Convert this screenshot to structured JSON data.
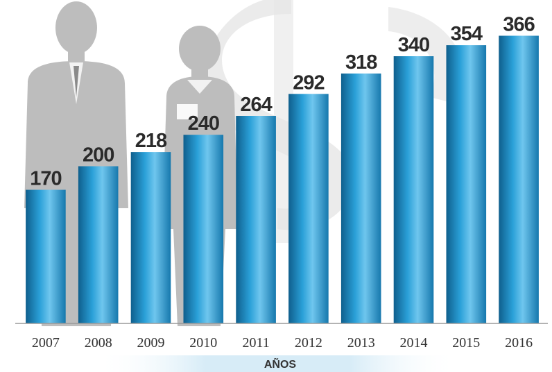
{
  "chart_data": {
    "type": "bar",
    "categories": [
      "2007",
      "2008",
      "2009",
      "2010",
      "2011",
      "2012",
      "2013",
      "2014",
      "2015",
      "2016"
    ],
    "values": [
      170,
      200,
      218,
      240,
      264,
      292,
      318,
      340,
      354,
      366
    ],
    "xlabel": "AÑOS",
    "ylabel": "",
    "ylim": [
      0,
      385
    ],
    "grid": false,
    "legend": "none",
    "data_labels": true
  },
  "colors": {
    "bar_dark": "#0f5f8d",
    "bar_mid": "#2aa0d8",
    "bar_light": "#6fc6ee",
    "silhouette": "#bdbdbd",
    "baseline": "#9a9a9a",
    "footer_band": "#d7ecf7"
  },
  "background": {
    "icons": [
      "man-in-suit-silhouette",
      "woman-silhouette",
      "dollar-sign-watermark"
    ]
  }
}
